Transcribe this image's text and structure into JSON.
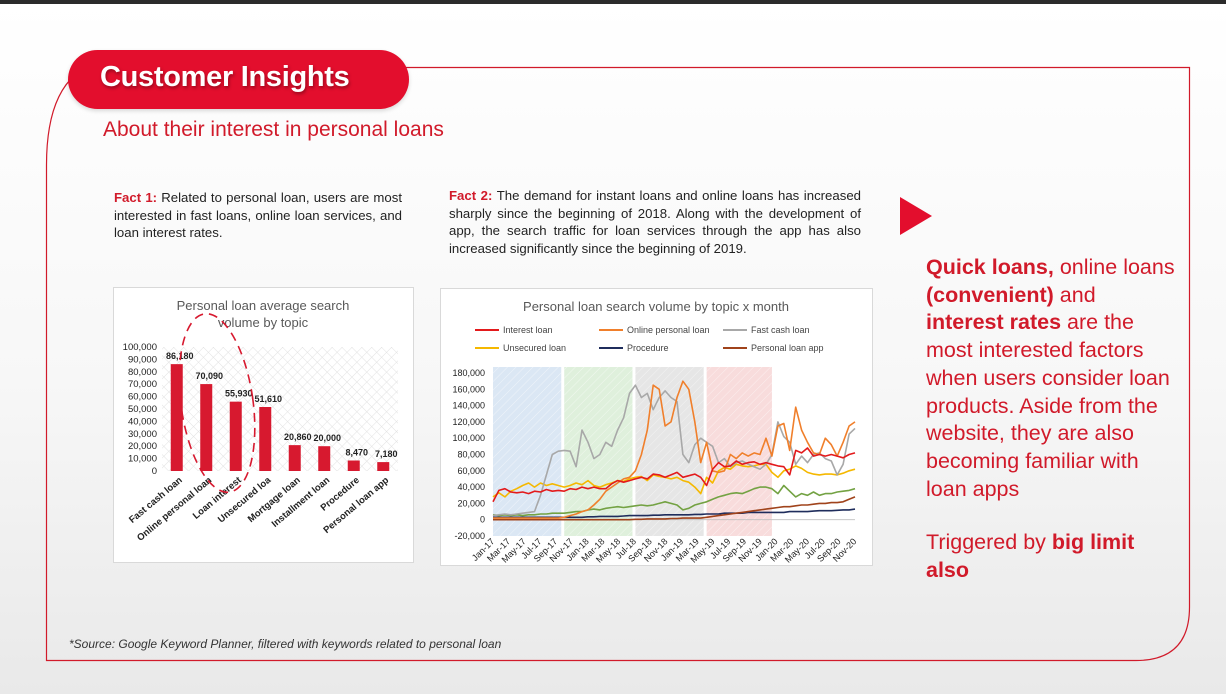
{
  "header": {
    "title": "Customer Insights",
    "subtitle": "About their interest in personal loans"
  },
  "facts": [
    {
      "label": "Fact 1:",
      "text": "Related to personal loan, users are most interested in fast loans, online loan services, and loan interest rates."
    },
    {
      "label": "Fact 2:",
      "text": "The demand for instant loans and online loans has increased sharply since the beginning of 2018. Along with the development of app, the search traffic for loan services through the app has also increased significantly since the beginning of 2019."
    }
  ],
  "insight": {
    "p1": "Quick loans,",
    "p2": " online loans ",
    "p3": "(convenient)",
    "p4": " and ",
    "p5": "interest rates",
    "p6": " are the most interested factors when users consider loan products. Aside from the website, they are also becoming familiar with loan apps",
    "t1": "Triggered by ",
    "t2": "big limit also"
  },
  "source": "*Source: Google Keyword Planner, filtered with keywords related to personal loan",
  "colors": {
    "accent": "#e30e2d",
    "text_red": "#d11a2a",
    "bar": "#d7192f"
  },
  "chart_data": [
    {
      "type": "bar",
      "title": "Personal loan average search volume by topic",
      "categories": [
        "Fast cash loan",
        "Online personal loan",
        "Loan interest",
        "Unsecured loa",
        "Mortgage loan",
        "Installment loan",
        "Procedure",
        "Personal loan app"
      ],
      "values": [
        86180,
        70090,
        55930,
        51610,
        20860,
        20000,
        8470,
        7180
      ],
      "data_labels": [
        "86,180",
        "70,090",
        "55,930",
        "51,610",
        "20,860",
        "20,000",
        "8,470",
        "7,180"
      ],
      "yticks": [
        "0",
        "10,000",
        "20,000",
        "30,000",
        "40,000",
        "50,000",
        "60,000",
        "70,000",
        "80,000",
        "90,000",
        "100,000"
      ],
      "ylim": [
        0,
        100000
      ],
      "color": "#d7192f",
      "annotation": "dashed red ellipse around the top three bars"
    },
    {
      "type": "line",
      "title": "Personal loan search volume by topic x month",
      "xticks": [
        "Jan-17",
        "Mar-17",
        "May-17",
        "Jul-17",
        "Sep-17",
        "Nov-17",
        "Jan-18",
        "Mar-18",
        "May-18",
        "Jul-18",
        "Sep-18",
        "Nov-18",
        "Jan-19",
        "Mar-19",
        "May-19",
        "Jul-19",
        "Sep-19",
        "Nov-19",
        "Jan-20",
        "Mar-20",
        "May-20",
        "Jul-20",
        "Sep-20",
        "Nov-20"
      ],
      "yticks": [
        "-20,000",
        "0",
        "20,000",
        "40,000",
        "60,000",
        "80,000",
        "100,000",
        "120,000",
        "140,000",
        "160,000",
        "180,000"
      ],
      "ylim": [
        -20000,
        180000
      ],
      "legend_position": "top",
      "shaded_periods": [
        {
          "from": 0,
          "to": 11.5,
          "color": "#dbe7f4"
        },
        {
          "from": 12,
          "to": 23.5,
          "color": "#dff0dc"
        },
        {
          "from": 24,
          "to": 35.5,
          "color": "#e6e6e6"
        },
        {
          "from": 36,
          "to": 47,
          "color": "#f8dcdc"
        }
      ],
      "series": [
        {
          "name": "Interest loan",
          "color": "#e31a1c",
          "values": [
            22000,
            36000,
            38000,
            34000,
            33000,
            34000,
            32000,
            35000,
            34000,
            37000,
            35000,
            36000,
            35000,
            38000,
            37000,
            40000,
            38000,
            40000,
            38000,
            38000,
            44000,
            48000,
            46000,
            48000,
            50000,
            52000,
            50000,
            56000,
            55000,
            52000,
            55000,
            58000,
            52000,
            54000,
            56000,
            52000,
            42000,
            62000,
            70000,
            65000,
            66000,
            72000,
            68000,
            70000,
            71000,
            68000,
            70000,
            68000,
            66000,
            65000,
            55000,
            85000,
            82000,
            88000,
            78000,
            80000,
            78000,
            80000,
            78000,
            76000,
            80000,
            82000
          ]
        },
        {
          "name": "Online personal loan",
          "color": "#f07f2b",
          "values": [
            2000,
            2000,
            2000,
            2000,
            2000,
            2000,
            2000,
            2000,
            2000,
            2000,
            2000,
            2000,
            3000,
            5000,
            7000,
            10000,
            12000,
            18000,
            25000,
            35000,
            40000,
            45000,
            50000,
            52000,
            60000,
            80000,
            110000,
            165000,
            160000,
            115000,
            120000,
            150000,
            170000,
            160000,
            120000,
            70000,
            95000,
            60000,
            58000,
            60000,
            80000,
            75000,
            82000,
            78000,
            82000,
            80000,
            100000,
            78000,
            115000,
            118000,
            85000,
            138000,
            110000,
            95000,
            82000,
            80000,
            100000,
            92000,
            78000,
            95000,
            115000,
            120000
          ]
        },
        {
          "name": "Fast cash loan",
          "color": "#a8a8a8",
          "values": [
            5000,
            6000,
            7000,
            6000,
            7000,
            8000,
            9000,
            10000,
            30000,
            55000,
            80000,
            84000,
            85000,
            84000,
            65000,
            110000,
            95000,
            75000,
            80000,
            95000,
            90000,
            110000,
            125000,
            155000,
            165000,
            150000,
            155000,
            135000,
            150000,
            158000,
            150000,
            145000,
            80000,
            70000,
            92000,
            100000,
            95000,
            90000,
            70000,
            75000,
            65000,
            70000,
            72000,
            68000,
            65000,
            62000,
            68000,
            80000,
            120000,
            102000,
            95000,
            68000,
            78000,
            70000,
            80000,
            82000,
            75000,
            72000,
            55000,
            68000,
            105000,
            112000
          ]
        },
        {
          "name": "Unsecured loan",
          "color": "#f5b800",
          "values": [
            28000,
            33000,
            28000,
            35000,
            38000,
            42000,
            45000,
            40000,
            45000,
            42000,
            44000,
            42000,
            40000,
            42000,
            45000,
            43000,
            48000,
            42000,
            40000,
            43000,
            45000,
            48000,
            47000,
            50000,
            52000,
            53000,
            48000,
            55000,
            53000,
            52000,
            50000,
            52000,
            48000,
            46000,
            40000,
            32000,
            52000,
            45000,
            60000,
            64000,
            62000,
            68000,
            66000,
            65000,
            66000,
            68000,
            68000,
            58000,
            52000,
            60000,
            62000,
            66000,
            63000,
            58000,
            56000,
            55000,
            56000,
            56000,
            55000,
            57000,
            60000,
            62000
          ]
        },
        {
          "name": "Procedure",
          "color": "#1f2d5c",
          "values": [
            3000,
            3000,
            3000,
            3000,
            3000,
            3000,
            3000,
            3000,
            3000,
            3000,
            3000,
            3000,
            3000,
            3000,
            3000,
            3000,
            3500,
            3500,
            4000,
            4000,
            4000,
            4000,
            4500,
            5000,
            5000,
            5000,
            5000,
            5500,
            5500,
            6000,
            6000,
            6000,
            6000,
            6000,
            6500,
            6500,
            7000,
            7000,
            7000,
            8000,
            8000,
            8000,
            8000,
            9000,
            9000,
            9000,
            9000,
            9000,
            9000,
            9000,
            10000,
            10000,
            10000,
            10000,
            10500,
            11000,
            11000,
            11000,
            11500,
            12000,
            12000,
            13000
          ]
        },
        {
          "name": "Personal loan app",
          "color": "#a0431b",
          "values": [
            0,
            0,
            0,
            0,
            0,
            0,
            0,
            0,
            0,
            0,
            0,
            0,
            0,
            0,
            0,
            0,
            0,
            0,
            0,
            0,
            0,
            0,
            0,
            0,
            500,
            500,
            1000,
            1000,
            1000,
            1000,
            1500,
            1500,
            2000,
            2000,
            2000,
            2000,
            3000,
            4000,
            5000,
            6000,
            7000,
            8000,
            9000,
            10000,
            11000,
            12000,
            13000,
            14000,
            15000,
            16000,
            16000,
            17000,
            18000,
            18000,
            19000,
            20000,
            20000,
            21000,
            21000,
            22000,
            25000,
            28000
          ]
        },
        {
          "name": "",
          "color": "#73a243",
          "values": [
            6000,
            5000,
            6000,
            5000,
            6000,
            5000,
            6000,
            6000,
            7000,
            7000,
            8000,
            8000,
            8000,
            9000,
            10000,
            10000,
            12000,
            13000,
            12000,
            14000,
            15000,
            16000,
            15000,
            16000,
            17000,
            18000,
            17000,
            18000,
            20000,
            22000,
            20000,
            18000,
            12000,
            14000,
            18000,
            20000,
            22000,
            25000,
            28000,
            30000,
            32000,
            33000,
            32000,
            35000,
            38000,
            40000,
            40000,
            38000,
            32000,
            42000,
            35000,
            28000,
            32000,
            30000,
            34000,
            30000,
            32000,
            32000,
            34000,
            35000,
            36000,
            38000
          ]
        }
      ]
    }
  ]
}
